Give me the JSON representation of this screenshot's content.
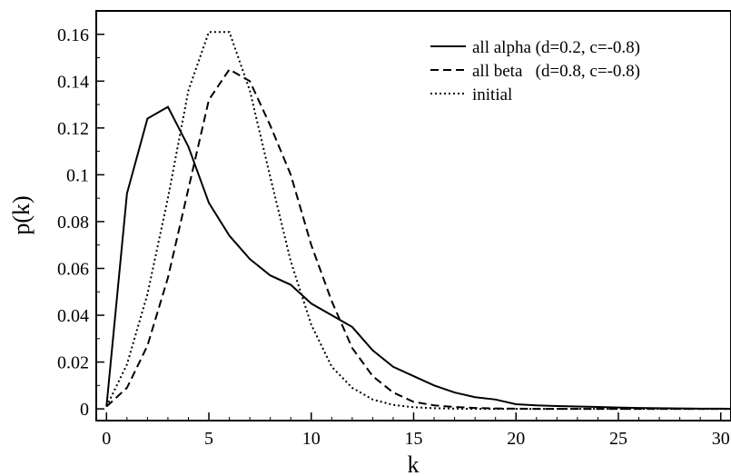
{
  "chart_data": {
    "type": "line",
    "xlabel": "k",
    "ylabel": "p(k)",
    "xlim": [
      -0.5,
      30.5
    ],
    "ylim": [
      -0.005,
      0.17
    ],
    "xticks": [
      0,
      5,
      10,
      15,
      20,
      25,
      30
    ],
    "xtick_labels": [
      "0",
      "5",
      "10",
      "15",
      "20",
      "25",
      "30"
    ],
    "yticks": [
      0,
      0.02,
      0.04,
      0.06,
      0.08,
      0.1,
      0.12,
      0.14,
      0.16
    ],
    "ytick_labels": [
      "0",
      "0.02",
      "0.04",
      "0.06",
      "0.08",
      "0.1",
      "0.12",
      "0.14",
      "0.16"
    ],
    "grid": false,
    "legend_position": "top-right",
    "colors": {
      "line": "#000000"
    },
    "x": [
      0,
      1,
      2,
      3,
      4,
      5,
      6,
      7,
      8,
      9,
      10,
      11,
      12,
      13,
      14,
      15,
      16,
      17,
      18,
      19,
      20,
      21,
      22,
      23,
      24,
      25,
      26,
      27,
      28,
      29,
      30,
      31
    ],
    "series": [
      {
        "name": "all alpha (d=0.2, c=-0.8)",
        "dash": "solid",
        "values": [
          0.001,
          0.092,
          0.124,
          0.129,
          0.112,
          0.088,
          0.074,
          0.064,
          0.057,
          0.053,
          0.045,
          0.04,
          0.035,
          0.025,
          0.018,
          0.014,
          0.01,
          0.007,
          0.005,
          0.004,
          0.002,
          0.0015,
          0.0012,
          0.001,
          0.0008,
          0.0006,
          0.0004,
          0.0003,
          0.0002,
          0.0001,
          0.0001,
          0.0
        ]
      },
      {
        "name": "all beta   (d=0.8, c=-0.8)",
        "dash": "dashed",
        "values": [
          0.001,
          0.009,
          0.027,
          0.056,
          0.094,
          0.132,
          0.145,
          0.14,
          0.121,
          0.1,
          0.07,
          0.046,
          0.026,
          0.014,
          0.007,
          0.003,
          0.0015,
          0.0008,
          0.0004,
          0.0002,
          0.0001,
          0.0,
          0.0,
          0.0,
          0.0,
          0.0,
          0.0,
          0.0,
          0.0,
          0.0,
          0.0,
          0.0
        ]
      },
      {
        "name": "initial",
        "dash": "dotted",
        "values": [
          0.001,
          0.019,
          0.049,
          0.09,
          0.136,
          0.161,
          0.161,
          0.136,
          0.099,
          0.063,
          0.036,
          0.018,
          0.009,
          0.004,
          0.0017,
          0.0007,
          0.0003,
          0.0001,
          0.0,
          0.0,
          0.0,
          0.0,
          0.0,
          0.0,
          0.0,
          0.0,
          0.0,
          0.0,
          0.0,
          0.0,
          0.0,
          0.0
        ]
      }
    ]
  }
}
